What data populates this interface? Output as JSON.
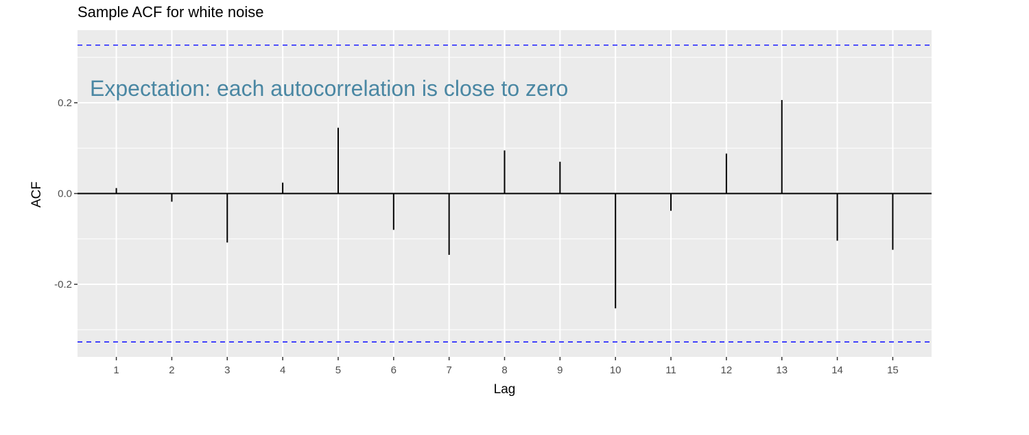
{
  "chart_data": {
    "type": "bar",
    "title": "Sample ACF for white noise",
    "xlabel": "Lag",
    "ylabel": "ACF",
    "x": [
      1,
      2,
      3,
      4,
      5,
      6,
      7,
      8,
      9,
      10,
      11,
      12,
      13,
      14,
      15
    ],
    "x_tick_labels": [
      "1",
      "2",
      "3",
      "4",
      "5",
      "6",
      "7",
      "8",
      "9",
      "10",
      "11",
      "12",
      "13",
      "14",
      "15"
    ],
    "values": [
      0.012,
      -0.018,
      -0.108,
      0.024,
      0.145,
      -0.08,
      -0.135,
      0.095,
      0.07,
      -0.253,
      -0.038,
      0.088,
      0.206,
      -0.104,
      -0.124
    ],
    "y_ticks": [
      -0.2,
      0.0,
      0.2
    ],
    "y_tick_labels": [
      "-0.2",
      "0.0",
      "0.2"
    ],
    "ylim": [
      -0.36,
      0.36
    ],
    "xlim": [
      0.3,
      15.7
    ],
    "confidence_bounds": [
      0.327,
      -0.327
    ],
    "annotation": "Expectation: each autocorrelation is close to zero",
    "grid": true,
    "colors": {
      "panel_background": "#ebebeb",
      "grid": "#ffffff",
      "bars": "#000000",
      "bounds": "#1a1aff",
      "annotation": "#4a87a3"
    }
  }
}
